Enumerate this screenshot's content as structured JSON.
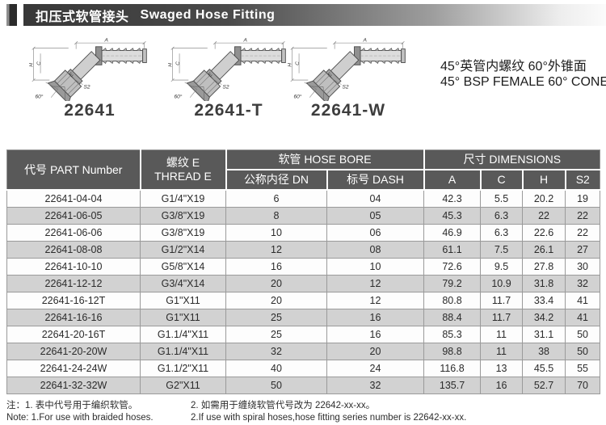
{
  "header": {
    "title_zh": "扣压式软管接头",
    "title_en": "Swaged Hose Fitting"
  },
  "products": [
    {
      "label": "22641"
    },
    {
      "label": "22641-T"
    },
    {
      "label": "22641-W"
    }
  ],
  "description": {
    "line_zh": "45°英管内螺纹 60°外锥面",
    "line_en": "45° BSP FEMALE 60° CONE"
  },
  "drawing": {
    "dim_a": "A",
    "dim_h": "H",
    "dim_c": "C",
    "dim_e": "E",
    "dim_s2": "S2",
    "dim_angle": "60°"
  },
  "table": {
    "headers": {
      "part": "代号 PART Number",
      "thread_zh": "螺纹 E",
      "thread_en": "THREAD E",
      "hose_bore": "软管 HOSE BORE",
      "dn": "公称内径 DN",
      "dash": "标号 DASH",
      "dimensions": "尺寸 DIMENSIONS",
      "a": "A",
      "c": "C",
      "h": "H",
      "s2": "S2"
    },
    "rows": [
      [
        "22641-04-04",
        "G1/4\"X19",
        "6",
        "04",
        "42.3",
        "5.5",
        "20.2",
        "19"
      ],
      [
        "22641-06-05",
        "G3/8\"X19",
        "8",
        "05",
        "45.3",
        "6.3",
        "22",
        "22"
      ],
      [
        "22641-06-06",
        "G3/8\"X19",
        "10",
        "06",
        "46.9",
        "6.3",
        "22.6",
        "22"
      ],
      [
        "22641-08-08",
        "G1/2\"X14",
        "12",
        "08",
        "61.1",
        "7.5",
        "26.1",
        "27"
      ],
      [
        "22641-10-10",
        "G5/8\"X14",
        "16",
        "10",
        "72.6",
        "9.5",
        "27.8",
        "30"
      ],
      [
        "22641-12-12",
        "G3/4\"X14",
        "20",
        "12",
        "79.2",
        "10.9",
        "31.8",
        "32"
      ],
      [
        "22641-16-12T",
        "G1\"X11",
        "20",
        "12",
        "80.8",
        "11.7",
        "33.4",
        "41"
      ],
      [
        "22641-16-16",
        "G1\"X11",
        "25",
        "16",
        "88.4",
        "11.7",
        "34.2",
        "41"
      ],
      [
        "22641-20-16T",
        "G1.1/4\"X11",
        "25",
        "16",
        "85.3",
        "11",
        "31.1",
        "50"
      ],
      [
        "22641-20-20W",
        "G1.1/4\"X11",
        "32",
        "20",
        "98.8",
        "11",
        "38",
        "50"
      ],
      [
        "22641-24-24W",
        "G1.1/2\"X11",
        "40",
        "24",
        "116.8",
        "13",
        "45.5",
        "55"
      ],
      [
        "22641-32-32W",
        "G2\"X11",
        "50",
        "32",
        "135.7",
        "16",
        "52.7",
        "70"
      ]
    ]
  },
  "notes": {
    "zh1": "注：1. 表中代号用于编织软管。",
    "zh2": "2. 如需用于缠绕软管代号改为 22642-xx-xx。",
    "en1": "Note: 1.For use with braided hoses.",
    "en2": "2.If use with spiral hoses,hose fitting series number is 22642-xx-xx."
  },
  "colors": {
    "header_bg": "#595959",
    "row_alt": "#d2d2d2",
    "title_dark": "#3a3a3a",
    "accent_dark": "#2e2e2e"
  }
}
